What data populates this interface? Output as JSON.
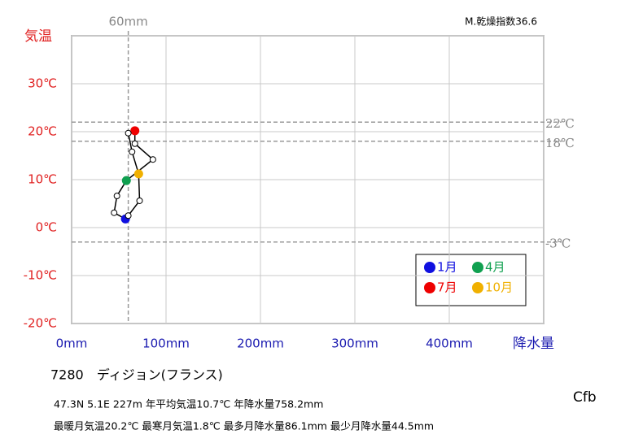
{
  "chart_data": {
    "type": "climograph",
    "y_title": "気温",
    "x_title": "降水量",
    "aridity": "M.乾燥指数36.6",
    "station": "7280　ディジョン(フランス)",
    "climate": "Cfb",
    "notes": [
      "47.3N  5.1E 227m  年平均気温10.7℃ 年降水量758.2mm",
      "最暖月気温20.2℃ 最寒月気温1.8℃ 最多月降水量86.1mm 最少月降水量44.5mm"
    ],
    "x": [
      57,
      45,
      48,
      58,
      86.1,
      67,
      67,
      60,
      64,
      71,
      72,
      60
    ],
    "y": [
      1.8,
      3.1,
      6.6,
      9.8,
      14.2,
      17.5,
      20.2,
      19.7,
      15.8,
      11.2,
      5.6,
      2.5
    ],
    "point_colors": [
      "#1010e0",
      "#ffffff",
      "#ffffff",
      "#10a050",
      "#ffffff",
      "#ffffff",
      "#ee0000",
      "#ffffff",
      "#ffffff",
      "#f0b000",
      "#ffffff",
      "#ffffff"
    ],
    "legend": [
      {
        "name": "1月",
        "color": "#1010e0"
      },
      {
        "name": "4月",
        "color": "#10a050"
      },
      {
        "name": "7月",
        "color": "#ee0000"
      },
      {
        "name": "10月",
        "color": "#f0b000"
      }
    ],
    "xlim": [
      0,
      500
    ],
    "ylim": [
      -20,
      40
    ],
    "xticks": [
      {
        "value": 0,
        "label": "0mm"
      },
      {
        "value": 100,
        "label": "100mm"
      },
      {
        "value": 200,
        "label": "200mm"
      },
      {
        "value": 300,
        "label": "300mm"
      },
      {
        "value": 400,
        "label": "400mm"
      },
      500
    ],
    "yticks": [
      {
        "value": -20,
        "label": "-20℃"
      },
      {
        "value": -10,
        "label": "-10℃"
      },
      {
        "value": 0,
        "label": "0℃"
      },
      {
        "value": 10,
        "label": "10℃"
      },
      {
        "value": 20,
        "label": "20℃"
      },
      {
        "value": 30,
        "label": "30℃"
      },
      40
    ],
    "y_refs": [
      {
        "value": 22,
        "label": "22℃"
      },
      {
        "value": 18,
        "label": "18℃"
      },
      {
        "value": -3,
        "label": "-3℃"
      }
    ],
    "x_refs": [
      {
        "value": 60,
        "label": "60mm"
      }
    ],
    "grid": true
  }
}
